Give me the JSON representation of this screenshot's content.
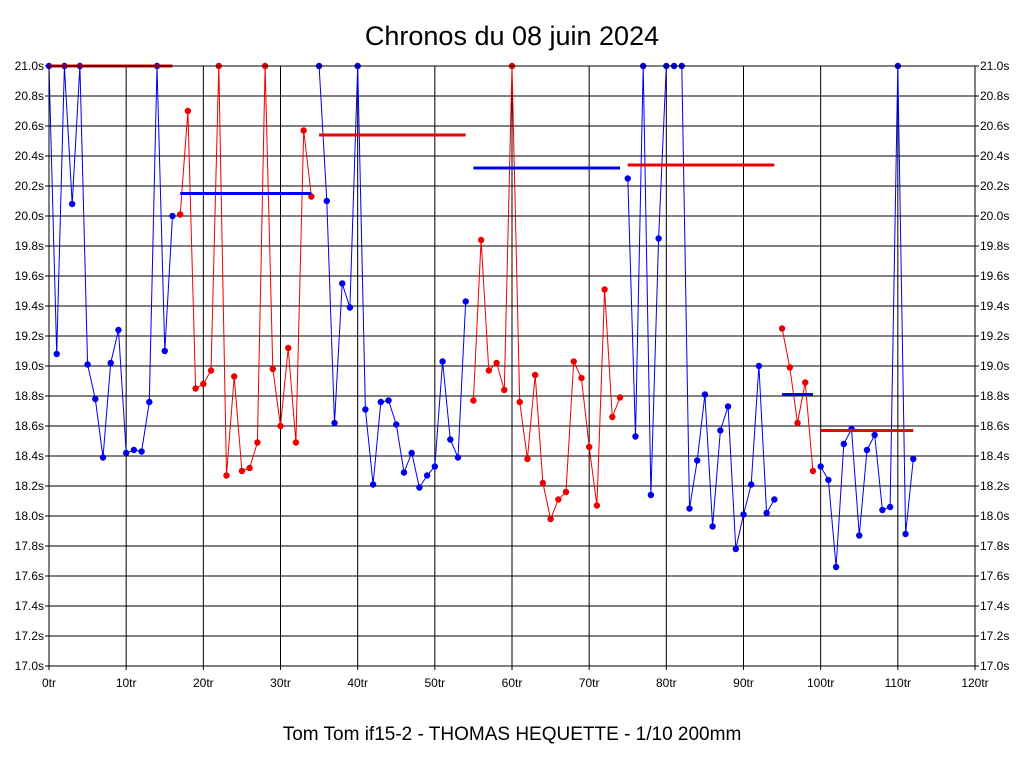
{
  "chart_data": {
    "type": "line",
    "title": "Chronos du 08 juin 2024",
    "footer": "Tom Tom if15-2 - THOMAS HEQUETTE - 1/10 200mm",
    "xlim": [
      0,
      120
    ],
    "ylim": [
      17.0,
      21.0
    ],
    "x_ticks": [
      {
        "v": 0,
        "label": "0tr"
      },
      {
        "v": 10,
        "label": "10tr"
      },
      {
        "v": 20,
        "label": "20tr"
      },
      {
        "v": 30,
        "label": "30tr"
      },
      {
        "v": 40,
        "label": "40tr"
      },
      {
        "v": 50,
        "label": "50tr"
      },
      {
        "v": 60,
        "label": "60tr"
      },
      {
        "v": 70,
        "label": "70tr"
      },
      {
        "v": 80,
        "label": "80tr"
      },
      {
        "v": 90,
        "label": "90tr"
      },
      {
        "v": 100,
        "label": "100tr"
      },
      {
        "v": 110,
        "label": "110tr"
      },
      {
        "v": 120,
        "label": "120tr"
      }
    ],
    "y_ticks": [
      {
        "v": 17.0,
        "label": "17.0s"
      },
      {
        "v": 17.2,
        "label": "17.2s"
      },
      {
        "v": 17.4,
        "label": "17.4s"
      },
      {
        "v": 17.6,
        "label": "17.6s"
      },
      {
        "v": 17.8,
        "label": "17.8s"
      },
      {
        "v": 18.0,
        "label": "18.0s"
      },
      {
        "v": 18.2,
        "label": "18.2s"
      },
      {
        "v": 18.4,
        "label": "18.4s"
      },
      {
        "v": 18.6,
        "label": "18.6s"
      },
      {
        "v": 18.8,
        "label": "18.8s"
      },
      {
        "v": 19.0,
        "label": "19.0s"
      },
      {
        "v": 19.2,
        "label": "19.2s"
      },
      {
        "v": 19.4,
        "label": "19.4s"
      },
      {
        "v": 19.6,
        "label": "19.6s"
      },
      {
        "v": 19.8,
        "label": "19.8s"
      },
      {
        "v": 20.0,
        "label": "20.0s"
      },
      {
        "v": 20.2,
        "label": "20.2s"
      },
      {
        "v": 20.4,
        "label": "20.4s"
      },
      {
        "v": 20.6,
        "label": "20.6s"
      },
      {
        "v": 20.8,
        "label": "20.8s"
      },
      {
        "v": 21.0,
        "label": "21.0s"
      }
    ],
    "colors": {
      "blue": "#0000ee",
      "red": "#ee0000"
    },
    "series": [
      {
        "name": "run-1",
        "color": "blue",
        "x": [
          0,
          1,
          2,
          3,
          4,
          5,
          6,
          7,
          8,
          9,
          10,
          11,
          12,
          13,
          14,
          15,
          16
        ],
        "y": [
          21.0,
          19.08,
          21.0,
          20.08,
          21.0,
          19.01,
          18.78,
          18.39,
          19.02,
          19.24,
          18.42,
          18.44,
          18.43,
          18.76,
          21.0,
          19.1,
          20.0
        ]
      },
      {
        "name": "run-2",
        "color": "red",
        "x": [
          17,
          18,
          19,
          20,
          21,
          22,
          23,
          24,
          25,
          26,
          27,
          28,
          29,
          30,
          31,
          32,
          33,
          34
        ],
        "y": [
          20.01,
          20.7,
          18.85,
          18.88,
          18.97,
          21.0,
          18.27,
          18.93,
          18.3,
          18.32,
          18.49,
          21.0,
          18.98,
          18.6,
          19.12,
          18.49,
          20.57,
          20.13
        ]
      },
      {
        "name": "run-3",
        "color": "blue",
        "x": [
          35,
          36,
          37,
          38,
          39,
          40,
          41,
          42,
          43,
          44,
          45,
          46,
          47,
          48,
          49,
          50,
          51,
          52,
          53,
          54
        ],
        "y": [
          21.0,
          20.1,
          18.62,
          19.55,
          19.39,
          21.0,
          18.71,
          18.21,
          18.76,
          18.77,
          18.61,
          18.29,
          18.42,
          18.19,
          18.27,
          18.33,
          19.03,
          18.51,
          18.39,
          19.43
        ]
      },
      {
        "name": "run-4",
        "color": "red",
        "x": [
          55,
          56,
          57,
          58,
          59,
          60,
          61,
          62,
          63,
          64,
          65,
          66,
          67,
          68,
          69,
          70,
          71,
          72,
          73,
          74
        ],
        "y": [
          18.77,
          19.84,
          18.97,
          19.02,
          18.84,
          21.0,
          18.76,
          18.38,
          18.94,
          18.22,
          17.98,
          18.11,
          18.16,
          19.03,
          18.92,
          18.46,
          18.07,
          19.51,
          18.66,
          18.79
        ]
      },
      {
        "name": "run-5",
        "color": "blue",
        "x": [
          75,
          76,
          77,
          78,
          79,
          80,
          81,
          82,
          83,
          84,
          85,
          86,
          87,
          88,
          89,
          90,
          91,
          92,
          93,
          94
        ],
        "y": [
          20.25,
          18.53,
          21.0,
          18.14,
          19.85,
          21.0,
          21.0,
          21.0,
          18.05,
          18.37,
          18.81,
          17.93,
          18.57,
          18.73,
          17.78,
          18.01,
          18.21,
          19.0,
          18.02,
          18.11
        ]
      },
      {
        "name": "run-6",
        "color": "red",
        "x": [
          95,
          96,
          97,
          98,
          99
        ],
        "y": [
          19.25,
          18.99,
          18.62,
          18.89,
          18.3
        ]
      },
      {
        "name": "run-7",
        "color": "blue",
        "x": [
          100,
          101,
          102,
          103,
          104,
          105,
          106,
          107,
          108,
          109,
          110,
          111,
          112
        ],
        "y": [
          18.33,
          18.24,
          17.66,
          18.48,
          18.58,
          17.87,
          18.44,
          18.54,
          18.04,
          18.06,
          21.0,
          17.88,
          18.38
        ]
      }
    ],
    "average_lines": [
      {
        "color": "red",
        "x": [
          0,
          16
        ],
        "y": 21.0
      },
      {
        "color": "blue",
        "x": [
          17,
          34
        ],
        "y": 20.15
      },
      {
        "color": "red",
        "x": [
          35,
          54
        ],
        "y": 20.54
      },
      {
        "color": "blue",
        "x": [
          55,
          74
        ],
        "y": 20.32
      },
      {
        "color": "red",
        "x": [
          75,
          94
        ],
        "y": 20.34
      },
      {
        "color": "blue",
        "x": [
          95,
          99
        ],
        "y": 18.81
      },
      {
        "color": "red",
        "x": [
          100,
          112
        ],
        "y": 18.57
      }
    ]
  }
}
